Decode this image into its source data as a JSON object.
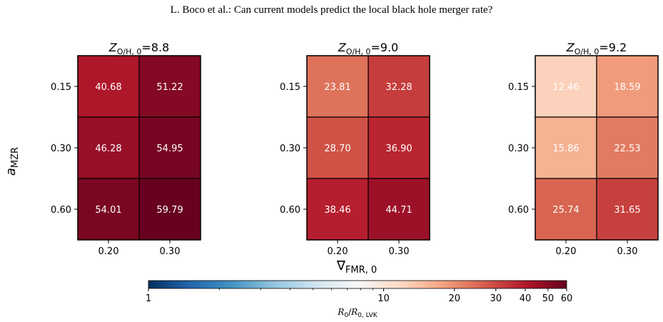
{
  "header": "L. Boco et al.: Can current models predict the local black hole merger rate?",
  "chart_data": {
    "type": "heatmap",
    "ylabel": "a_MZR",
    "xlabel": "∇_FMR,0",
    "x_ticks": [
      "0.20",
      "0.30"
    ],
    "y_ticks": [
      "0.15",
      "0.30",
      "0.60"
    ],
    "panels": [
      {
        "title": "Z_O/H,0=8.8",
        "title_main": "Z",
        "title_sub": "O/H, 0",
        "title_value": "=8.8",
        "values": [
          [
            40.68,
            51.22
          ],
          [
            46.28,
            54.95
          ],
          [
            54.01,
            59.79
          ]
        ]
      },
      {
        "title": "Z_O/H,0=9.0",
        "title_main": "Z",
        "title_sub": "O/H, 0",
        "title_value": "=9.0",
        "values": [
          [
            23.81,
            32.28
          ],
          [
            28.7,
            36.9
          ],
          [
            38.46,
            44.71
          ]
        ]
      },
      {
        "title": "Z_O/H,0=9.2",
        "title_main": "Z",
        "title_sub": "O/H, 0",
        "title_value": "=9.2",
        "values": [
          [
            12.46,
            18.59
          ],
          [
            15.86,
            22.53
          ],
          [
            25.74,
            31.65
          ]
        ]
      }
    ],
    "colorbar": {
      "scale": "log",
      "range": [
        1,
        60
      ],
      "colormap": "RdBu_r",
      "ticks": [
        "1",
        "10",
        "20",
        "30",
        "40",
        "50",
        "60"
      ],
      "label": "R_0/R_0,LVK",
      "label_main": "R",
      "label_sub_0": "0",
      "label_sub_1": "0, LVK"
    }
  }
}
